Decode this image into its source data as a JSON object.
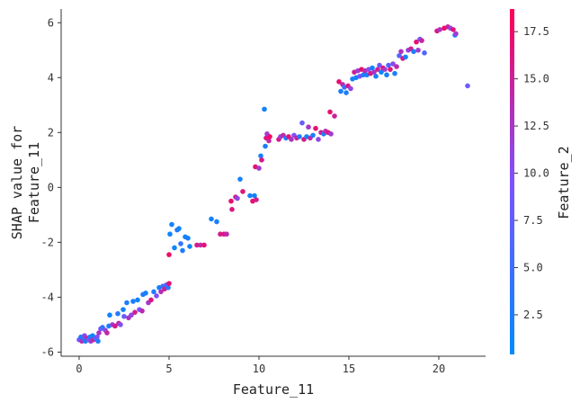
{
  "chart_data": {
    "type": "scatter",
    "title": "",
    "xlabel": "Feature_11",
    "ylabel_lines": [
      "SHAP value for",
      "Feature_11"
    ],
    "xlim": [
      -1,
      22.6
    ],
    "ylim": [
      -6.15,
      6.5
    ],
    "xticks": [
      0,
      5,
      10,
      15,
      20
    ],
    "yticks": [
      -6,
      -4,
      -2,
      0,
      2,
      4,
      6
    ],
    "grid": false,
    "legend": "none",
    "colorbar": {
      "label": "Feature_2",
      "range": [
        0.4,
        18.7
      ],
      "ticks": [
        2.5,
        5.0,
        7.5,
        10.0,
        12.5,
        15.0,
        17.5
      ],
      "tick_labels": [
        "2.5",
        "5.0",
        "7.5",
        "10.0",
        "12.5",
        "15.0",
        "17.5"
      ],
      "low_color": "#008bfb",
      "mid_color": "#7c52ff",
      "high_color": "#ff0052"
    },
    "points": [
      {
        "x": 0.0,
        "y": -5.55,
        "c": 9.0
      },
      {
        "x": 0.1,
        "y": -5.45,
        "c": 1.5
      },
      {
        "x": 0.15,
        "y": -5.6,
        "c": 14.0
      },
      {
        "x": 0.25,
        "y": -5.5,
        "c": 5.0
      },
      {
        "x": 0.3,
        "y": -5.4,
        "c": 11.0
      },
      {
        "x": 0.35,
        "y": -5.6,
        "c": 2.0
      },
      {
        "x": 0.45,
        "y": -5.5,
        "c": 16.0
      },
      {
        "x": 0.5,
        "y": -5.55,
        "c": 8.0
      },
      {
        "x": 0.6,
        "y": -5.45,
        "c": 3.0
      },
      {
        "x": 0.65,
        "y": -5.6,
        "c": 12.0
      },
      {
        "x": 0.75,
        "y": -5.4,
        "c": 1.0
      },
      {
        "x": 0.8,
        "y": -5.55,
        "c": 15.0
      },
      {
        "x": 0.9,
        "y": -5.5,
        "c": 6.0
      },
      {
        "x": 1.0,
        "y": -5.45,
        "c": 10.0
      },
      {
        "x": 1.05,
        "y": -5.6,
        "c": 2.5
      },
      {
        "x": 1.1,
        "y": -5.3,
        "c": 13.0
      },
      {
        "x": 1.2,
        "y": -5.15,
        "c": 9.0
      },
      {
        "x": 1.3,
        "y": -5.1,
        "c": 4.0
      },
      {
        "x": 1.45,
        "y": -5.2,
        "c": 11.0
      },
      {
        "x": 1.55,
        "y": -5.3,
        "c": 14.5
      },
      {
        "x": 1.65,
        "y": -5.05,
        "c": 2.0
      },
      {
        "x": 1.7,
        "y": -4.65,
        "c": 1.5
      },
      {
        "x": 1.85,
        "y": -5.0,
        "c": 12.0
      },
      {
        "x": 2.0,
        "y": -5.05,
        "c": 16.0
      },
      {
        "x": 2.15,
        "y": -4.6,
        "c": 3.0
      },
      {
        "x": 2.2,
        "y": -4.95,
        "c": 15.0
      },
      {
        "x": 2.3,
        "y": -5.0,
        "c": 10.0
      },
      {
        "x": 2.45,
        "y": -4.45,
        "c": 1.8
      },
      {
        "x": 2.5,
        "y": -4.7,
        "c": 8.0
      },
      {
        "x": 2.65,
        "y": -4.2,
        "c": 2.2
      },
      {
        "x": 2.75,
        "y": -4.75,
        "c": 13.0
      },
      {
        "x": 2.9,
        "y": -4.65,
        "c": 11.0
      },
      {
        "x": 3.0,
        "y": -4.15,
        "c": 2.5
      },
      {
        "x": 3.1,
        "y": -4.55,
        "c": 15.5
      },
      {
        "x": 3.25,
        "y": -4.1,
        "c": 1.5
      },
      {
        "x": 3.35,
        "y": -4.45,
        "c": 9.5
      },
      {
        "x": 3.5,
        "y": -4.5,
        "c": 14.0
      },
      {
        "x": 3.55,
        "y": -3.9,
        "c": 3.0
      },
      {
        "x": 3.7,
        "y": -3.85,
        "c": 2.0
      },
      {
        "x": 3.85,
        "y": -4.2,
        "c": 12.5
      },
      {
        "x": 4.0,
        "y": -4.1,
        "c": 16.5
      },
      {
        "x": 4.15,
        "y": -3.8,
        "c": 2.8
      },
      {
        "x": 4.3,
        "y": -3.95,
        "c": 10.0
      },
      {
        "x": 4.45,
        "y": -3.65,
        "c": 1.5
      },
      {
        "x": 4.55,
        "y": -3.8,
        "c": 13.5
      },
      {
        "x": 4.65,
        "y": -3.6,
        "c": 5.0
      },
      {
        "x": 4.75,
        "y": -3.7,
        "c": 15.0
      },
      {
        "x": 4.85,
        "y": -3.55,
        "c": 7.0
      },
      {
        "x": 4.95,
        "y": -3.65,
        "c": 3.5
      },
      {
        "x": 5.0,
        "y": -3.5,
        "c": 17.0
      },
      {
        "x": 5.0,
        "y": -2.45,
        "c": 17.5
      },
      {
        "x": 5.05,
        "y": -1.7,
        "c": 1.5
      },
      {
        "x": 5.15,
        "y": -1.35,
        "c": 2.0
      },
      {
        "x": 5.3,
        "y": -2.2,
        "c": 1.2
      },
      {
        "x": 5.45,
        "y": -1.55,
        "c": 3.0
      },
      {
        "x": 5.55,
        "y": -1.5,
        "c": 1.5
      },
      {
        "x": 5.65,
        "y": -2.05,
        "c": 4.0
      },
      {
        "x": 5.75,
        "y": -2.3,
        "c": 2.5
      },
      {
        "x": 5.9,
        "y": -1.8,
        "c": 1.8
      },
      {
        "x": 6.05,
        "y": -1.85,
        "c": 2.2
      },
      {
        "x": 6.15,
        "y": -2.15,
        "c": 1.5
      },
      {
        "x": 6.55,
        "y": -2.1,
        "c": 16.0
      },
      {
        "x": 6.75,
        "y": -2.1,
        "c": 14.0
      },
      {
        "x": 6.95,
        "y": -2.1,
        "c": 17.0
      },
      {
        "x": 7.35,
        "y": -1.15,
        "c": 1.8
      },
      {
        "x": 7.65,
        "y": -1.25,
        "c": 2.5
      },
      {
        "x": 7.85,
        "y": -1.7,
        "c": 15.5
      },
      {
        "x": 8.05,
        "y": -1.7,
        "c": 16.5
      },
      {
        "x": 8.2,
        "y": -1.7,
        "c": 14.0
      },
      {
        "x": 8.45,
        "y": -0.5,
        "c": 17.0
      },
      {
        "x": 8.5,
        "y": -0.8,
        "c": 16.0
      },
      {
        "x": 8.7,
        "y": -0.35,
        "c": 15.0
      },
      {
        "x": 8.8,
        "y": -0.4,
        "c": 11.0
      },
      {
        "x": 8.95,
        "y": 0.3,
        "c": 2.0
      },
      {
        "x": 9.1,
        "y": -0.15,
        "c": 16.5
      },
      {
        "x": 9.5,
        "y": -0.3,
        "c": 2.5
      },
      {
        "x": 9.65,
        "y": -0.5,
        "c": 17.0
      },
      {
        "x": 9.75,
        "y": -0.3,
        "c": 1.5
      },
      {
        "x": 9.8,
        "y": 0.75,
        "c": 17.0
      },
      {
        "x": 9.85,
        "y": -0.45,
        "c": 15.5
      },
      {
        "x": 10.0,
        "y": 0.7,
        "c": 12.0
      },
      {
        "x": 10.1,
        "y": 1.15,
        "c": 2.0
      },
      {
        "x": 10.15,
        "y": 1.0,
        "c": 16.0
      },
      {
        "x": 10.3,
        "y": 2.85,
        "c": 1.8
      },
      {
        "x": 10.35,
        "y": 1.5,
        "c": 2.5
      },
      {
        "x": 10.4,
        "y": 1.8,
        "c": 16.5
      },
      {
        "x": 10.45,
        "y": 1.95,
        "c": 12.0
      },
      {
        "x": 10.55,
        "y": 1.7,
        "c": 14.5
      },
      {
        "x": 10.6,
        "y": 1.85,
        "c": 17.5
      },
      {
        "x": 11.1,
        "y": 1.75,
        "c": 16.0
      },
      {
        "x": 11.2,
        "y": 1.85,
        "c": 12.0
      },
      {
        "x": 11.35,
        "y": 1.9,
        "c": 14.0
      },
      {
        "x": 11.5,
        "y": 1.8,
        "c": 2.0
      },
      {
        "x": 11.65,
        "y": 1.85,
        "c": 17.0
      },
      {
        "x": 11.8,
        "y": 1.75,
        "c": 13.0
      },
      {
        "x": 11.95,
        "y": 1.9,
        "c": 10.0
      },
      {
        "x": 12.1,
        "y": 1.8,
        "c": 15.0
      },
      {
        "x": 12.25,
        "y": 1.85,
        "c": 3.0
      },
      {
        "x": 12.4,
        "y": 2.35,
        "c": 8.0
      },
      {
        "x": 12.5,
        "y": 1.75,
        "c": 16.0
      },
      {
        "x": 12.65,
        "y": 1.85,
        "c": 1.5
      },
      {
        "x": 12.75,
        "y": 2.2,
        "c": 12.5
      },
      {
        "x": 12.85,
        "y": 1.8,
        "c": 14.0
      },
      {
        "x": 13.0,
        "y": 1.9,
        "c": 2.5
      },
      {
        "x": 13.15,
        "y": 2.15,
        "c": 17.0
      },
      {
        "x": 13.3,
        "y": 1.75,
        "c": 11.0
      },
      {
        "x": 13.45,
        "y": 2.0,
        "c": 15.5
      },
      {
        "x": 13.6,
        "y": 1.95,
        "c": 2.0
      },
      {
        "x": 13.7,
        "y": 2.05,
        "c": 13.5
      },
      {
        "x": 13.85,
        "y": 2.0,
        "c": 16.5
      },
      {
        "x": 13.95,
        "y": 2.75,
        "c": 17.0
      },
      {
        "x": 14.0,
        "y": 1.95,
        "c": 12.0
      },
      {
        "x": 14.2,
        "y": 2.6,
        "c": 15.0
      },
      {
        "x": 14.45,
        "y": 3.85,
        "c": 17.0
      },
      {
        "x": 14.55,
        "y": 3.5,
        "c": 2.0
      },
      {
        "x": 14.65,
        "y": 3.75,
        "c": 14.0
      },
      {
        "x": 14.75,
        "y": 3.65,
        "c": 5.0
      },
      {
        "x": 14.85,
        "y": 3.45,
        "c": 2.5
      },
      {
        "x": 14.95,
        "y": 3.7,
        "c": 16.0
      },
      {
        "x": 15.1,
        "y": 3.6,
        "c": 11.0
      },
      {
        "x": 15.2,
        "y": 3.95,
        "c": 2.0
      },
      {
        "x": 15.3,
        "y": 4.2,
        "c": 15.0
      },
      {
        "x": 15.4,
        "y": 4.0,
        "c": 1.5
      },
      {
        "x": 15.5,
        "y": 4.25,
        "c": 12.0
      },
      {
        "x": 15.6,
        "y": 4.05,
        "c": 9.0
      },
      {
        "x": 15.7,
        "y": 4.3,
        "c": 17.0
      },
      {
        "x": 15.8,
        "y": 4.1,
        "c": 3.0
      },
      {
        "x": 15.9,
        "y": 4.25,
        "c": 14.0
      },
      {
        "x": 16.0,
        "y": 4.1,
        "c": 2.2
      },
      {
        "x": 16.1,
        "y": 4.3,
        "c": 10.0
      },
      {
        "x": 16.2,
        "y": 4.15,
        "c": 16.0
      },
      {
        "x": 16.3,
        "y": 4.35,
        "c": 1.8
      },
      {
        "x": 16.4,
        "y": 4.2,
        "c": 13.0
      },
      {
        "x": 16.5,
        "y": 4.05,
        "c": 2.5
      },
      {
        "x": 16.6,
        "y": 4.3,
        "c": 15.0
      },
      {
        "x": 16.7,
        "y": 4.45,
        "c": 8.0
      },
      {
        "x": 16.8,
        "y": 4.2,
        "c": 1.5
      },
      {
        "x": 16.9,
        "y": 4.35,
        "c": 17.0
      },
      {
        "x": 17.0,
        "y": 4.3,
        "c": 12.0
      },
      {
        "x": 17.1,
        "y": 4.1,
        "c": 2.0
      },
      {
        "x": 17.2,
        "y": 4.45,
        "c": 6.0
      },
      {
        "x": 17.3,
        "y": 4.3,
        "c": 16.5
      },
      {
        "x": 17.45,
        "y": 4.5,
        "c": 10.5
      },
      {
        "x": 17.55,
        "y": 4.15,
        "c": 2.5
      },
      {
        "x": 17.65,
        "y": 4.4,
        "c": 14.0
      },
      {
        "x": 17.8,
        "y": 4.8,
        "c": 7.0
      },
      {
        "x": 17.9,
        "y": 4.95,
        "c": 13.0
      },
      {
        "x": 18.0,
        "y": 4.7,
        "c": 16.0
      },
      {
        "x": 18.15,
        "y": 4.75,
        "c": 2.0
      },
      {
        "x": 18.3,
        "y": 5.0,
        "c": 11.0
      },
      {
        "x": 18.45,
        "y": 5.05,
        "c": 15.0
      },
      {
        "x": 18.6,
        "y": 4.95,
        "c": 3.0
      },
      {
        "x": 18.75,
        "y": 5.3,
        "c": 17.0
      },
      {
        "x": 18.85,
        "y": 5.0,
        "c": 12.0
      },
      {
        "x": 18.95,
        "y": 5.4,
        "c": 9.0
      },
      {
        "x": 19.05,
        "y": 5.35,
        "c": 14.5
      },
      {
        "x": 19.2,
        "y": 4.9,
        "c": 6.0
      },
      {
        "x": 19.9,
        "y": 5.7,
        "c": 16.0
      },
      {
        "x": 20.05,
        "y": 5.75,
        "c": 13.0
      },
      {
        "x": 20.3,
        "y": 5.8,
        "c": 17.5
      },
      {
        "x": 20.5,
        "y": 5.85,
        "c": 15.0
      },
      {
        "x": 20.65,
        "y": 5.8,
        "c": 11.0
      },
      {
        "x": 20.8,
        "y": 5.75,
        "c": 16.5
      },
      {
        "x": 20.9,
        "y": 5.55,
        "c": 2.0
      },
      {
        "x": 20.95,
        "y": 5.6,
        "c": 12.0
      },
      {
        "x": 21.6,
        "y": 3.7,
        "c": 8.5
      }
    ]
  }
}
